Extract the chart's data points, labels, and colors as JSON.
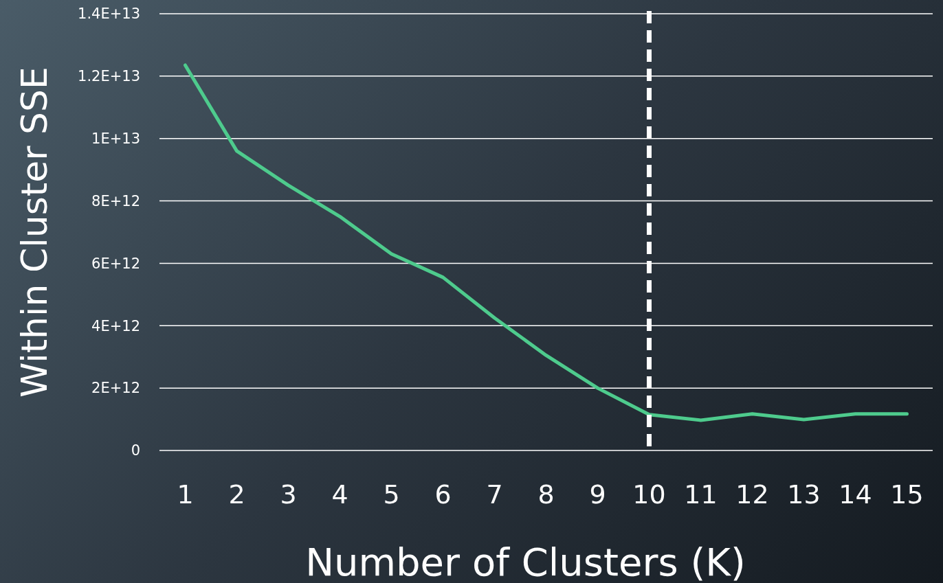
{
  "chart_data": {
    "type": "line",
    "xlabel": "Number of Clusters (K)",
    "ylabel": "Within Cluster SSE",
    "x": [
      1,
      2,
      3,
      4,
      5,
      6,
      7,
      8,
      9,
      10,
      11,
      12,
      13,
      14,
      15
    ],
    "xlim": [
      0.5,
      15.5
    ],
    "xticks": [
      1,
      2,
      3,
      4,
      5,
      6,
      7,
      8,
      9,
      10,
      11,
      12,
      13,
      14,
      15
    ],
    "ylim": [
      0,
      14000000000000
    ],
    "yticks": [
      {
        "value": 0,
        "label": "0"
      },
      {
        "value": 2000000000000,
        "label": "2E+12"
      },
      {
        "value": 4000000000000,
        "label": "4E+12"
      },
      {
        "value": 6000000000000,
        "label": "6E+12"
      },
      {
        "value": 8000000000000,
        "label": "8E+12"
      },
      {
        "value": 10000000000000,
        "label": "1E+13"
      },
      {
        "value": 12000000000000,
        "label": "1.2E+13"
      },
      {
        "value": 14000000000000,
        "label": "1.4E+13"
      }
    ],
    "series": [
      {
        "color": "#4ecb8d",
        "values": [
          12350000000000,
          9600000000000,
          8500000000000,
          7500000000000,
          6300000000000,
          5550000000000,
          4250000000000,
          3050000000000,
          2000000000000,
          1150000000000,
          970000000000,
          1170000000000,
          990000000000,
          1170000000000,
          1170000000000
        ]
      }
    ],
    "ref_lines": [
      {
        "axis": "x",
        "value": 10,
        "color": "#ffffff",
        "line_style": "dashed"
      }
    ],
    "grid": "y",
    "marker": "none",
    "line_style": "solid"
  }
}
